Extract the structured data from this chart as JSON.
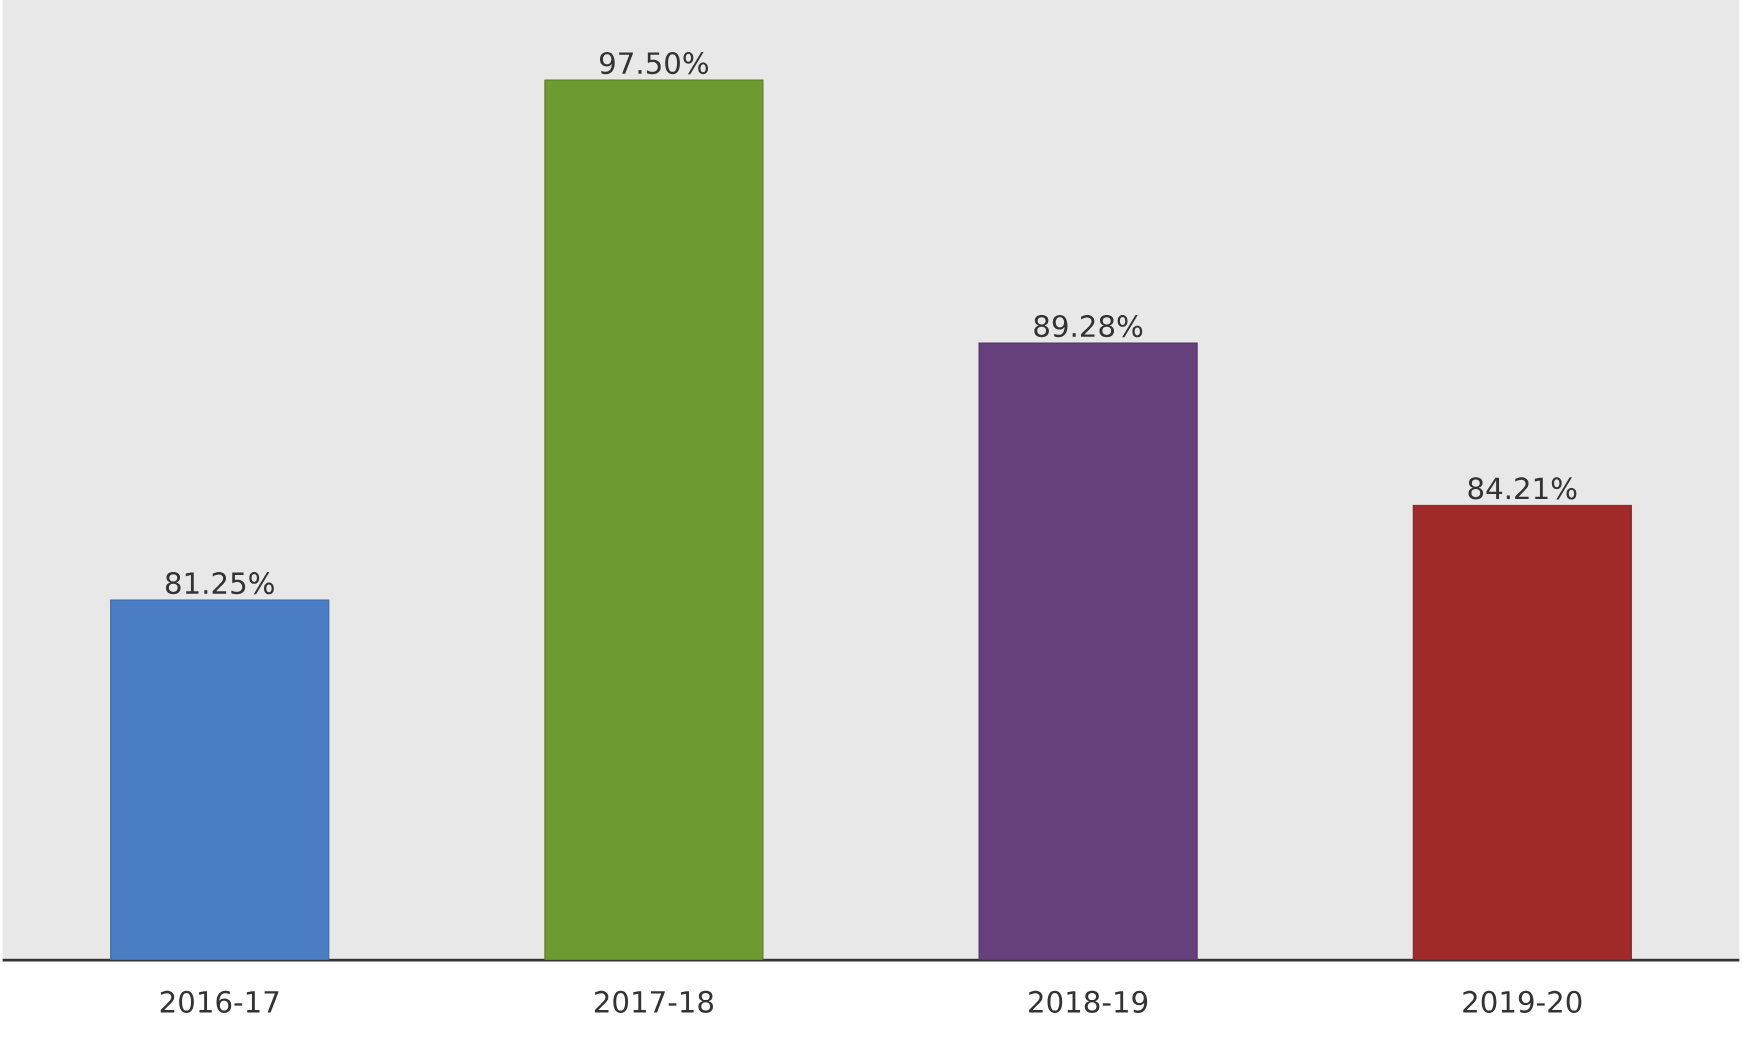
{
  "chart_data": {
    "type": "bar",
    "categories": [
      "2016-17",
      "2017-18",
      "2018-19",
      "2019-20"
    ],
    "values": [
      81.25,
      97.5,
      89.28,
      84.21
    ],
    "colors": [
      "#4a7dc4",
      "#6e9b2f",
      "#663f7d",
      "#a0292a"
    ],
    "value_labels": [
      "81.25%",
      "97.50%",
      "89.28%",
      "84.21%"
    ],
    "ylim": [
      70,
      100
    ],
    "tick_labels": "x"
  }
}
